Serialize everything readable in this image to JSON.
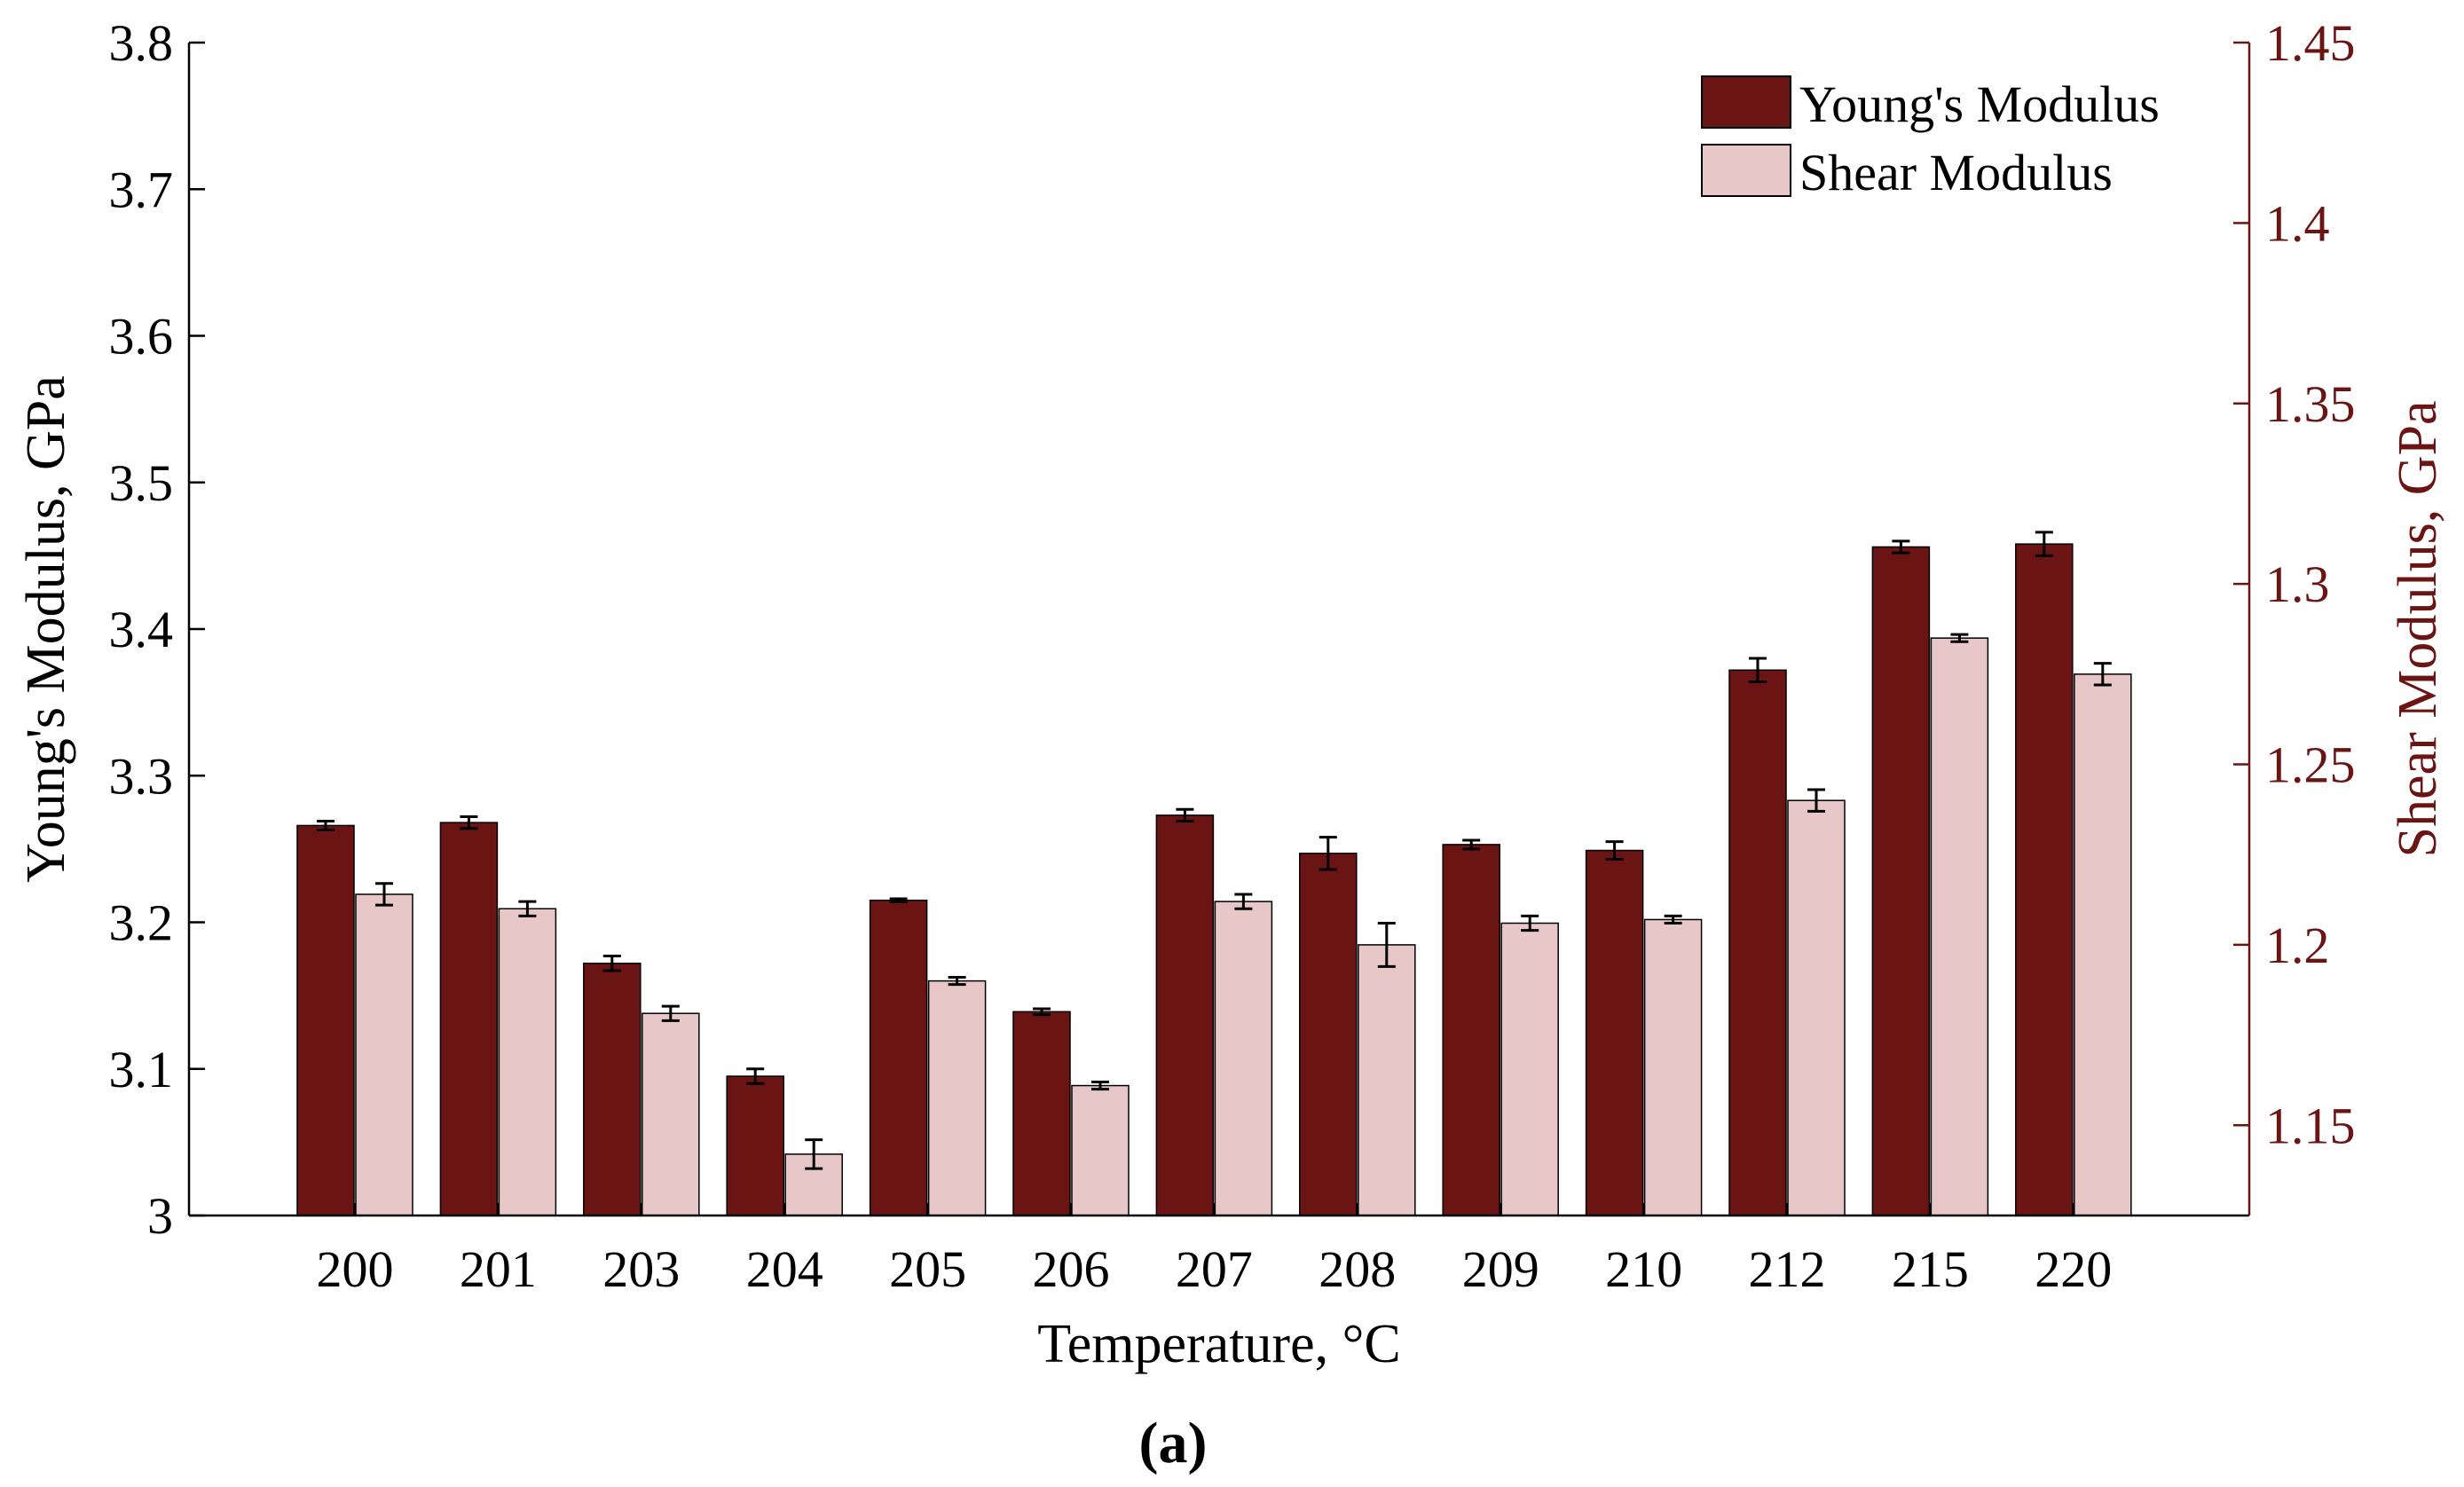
{
  "chart_data": {
    "type": "bar",
    "title": "",
    "caption": "(a)",
    "xlabel": "Temperature, °C",
    "ylabel": "Young's Modulus, GPa",
    "y2label": "Shear Modulus, GPa",
    "categories": [
      "200",
      "201",
      "203",
      "204",
      "205",
      "206",
      "207",
      "208",
      "209",
      "210",
      "212",
      "215",
      "220"
    ],
    "ylim": [
      3.0,
      3.8
    ],
    "yticks": [
      "3",
      "3.1",
      "3.2",
      "3.3",
      "3.4",
      "3.5",
      "3.6",
      "3.7",
      "3.8"
    ],
    "y2lim": [
      1.125,
      1.45
    ],
    "y2ticks": [
      "1.15",
      "1.2",
      "1.25",
      "1.3",
      "1.35",
      "1.4",
      "1.45"
    ],
    "legend_position": "top-right",
    "series": [
      {
        "name": "Young's Modulus",
        "axis": "left",
        "color": "#6b1414",
        "values": [
          3.266,
          3.268,
          3.172,
          3.095,
          3.215,
          3.139,
          3.273,
          3.247,
          3.253,
          3.249,
          3.372,
          3.456,
          3.458
        ],
        "errors": [
          0.003,
          0.004,
          0.005,
          0.005,
          0.001,
          0.002,
          0.004,
          0.011,
          0.003,
          0.006,
          0.008,
          0.004,
          0.008
        ]
      },
      {
        "name": "Shear Modulus",
        "axis": "right",
        "color": "#e8c7c8",
        "values": [
          1.214,
          1.21,
          1.181,
          1.142,
          1.19,
          1.161,
          1.212,
          1.2,
          1.206,
          1.207,
          1.24,
          1.285,
          1.275
        ],
        "errors": [
          0.003,
          0.002,
          0.002,
          0.004,
          0.001,
          0.001,
          0.002,
          0.006,
          0.002,
          0.001,
          0.003,
          0.001,
          0.003
        ]
      }
    ]
  }
}
